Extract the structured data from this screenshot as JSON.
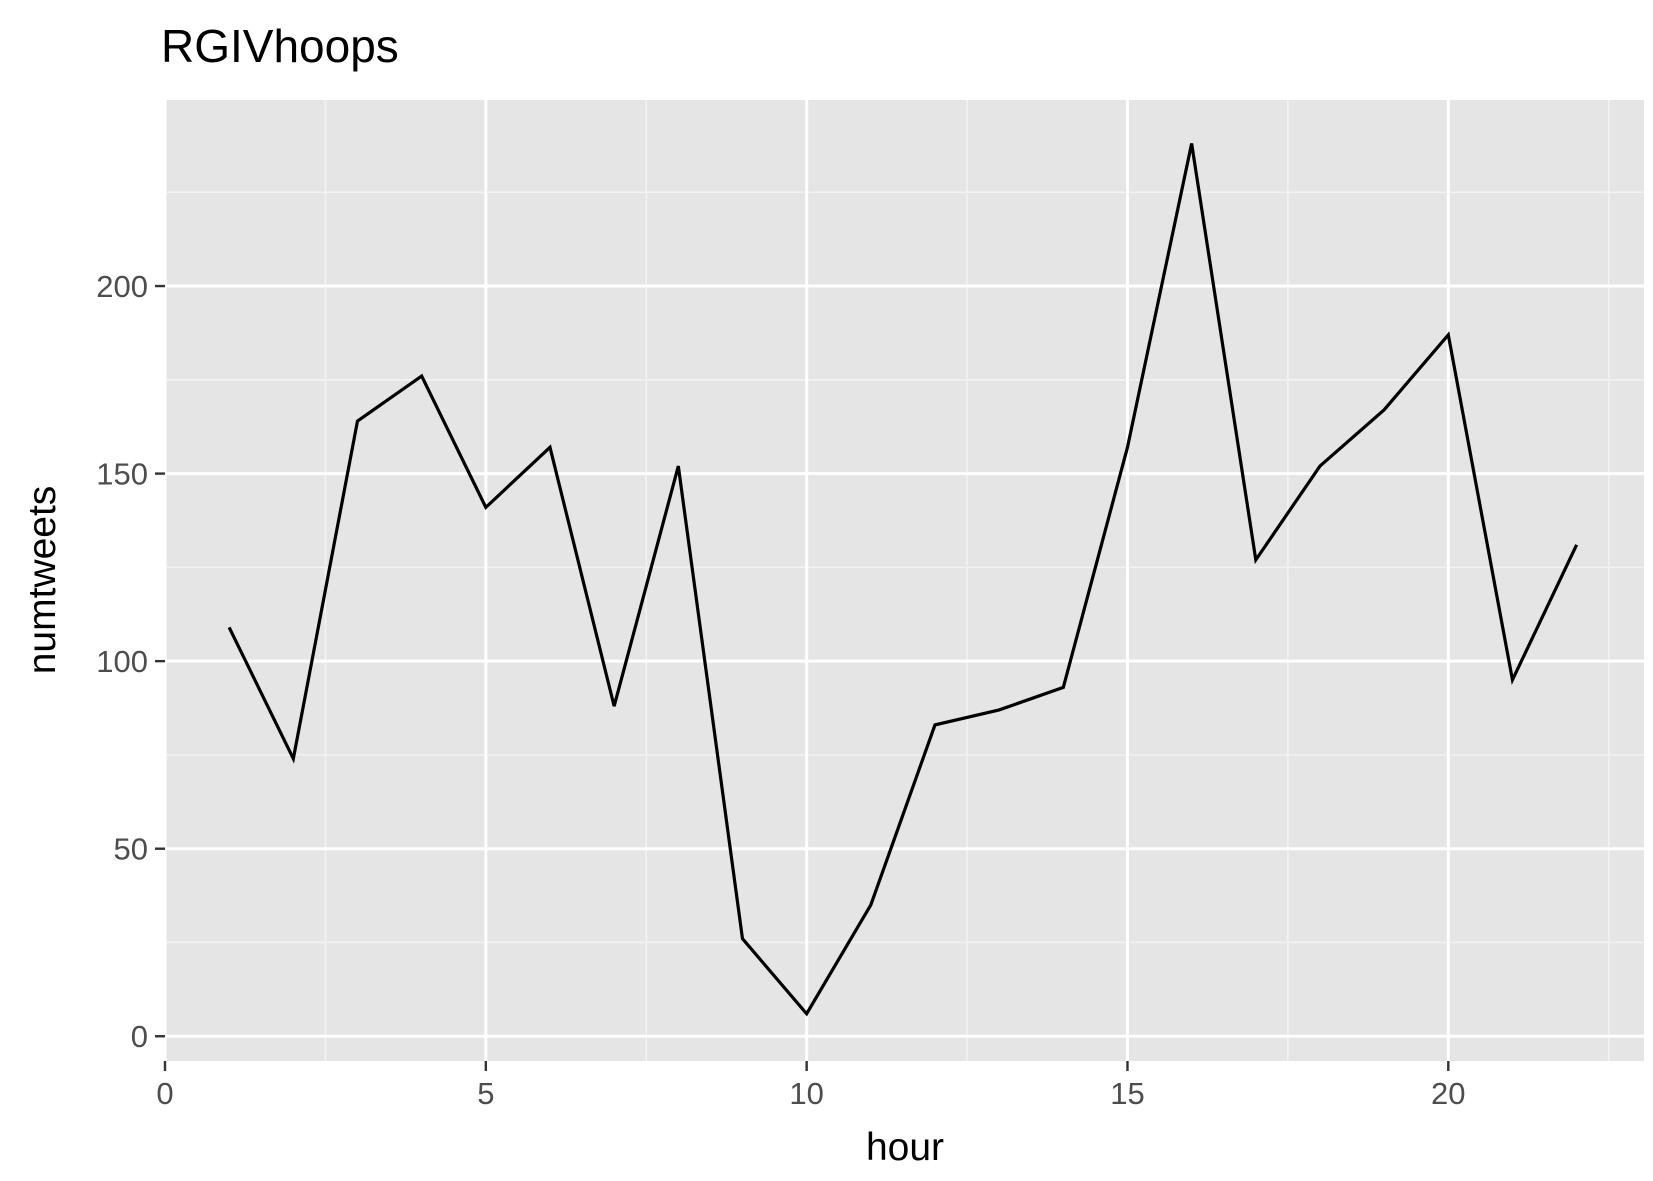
{
  "chart_data": {
    "type": "line",
    "title": "RGIVhoops",
    "xlabel": "hour",
    "ylabel": "numtweets",
    "xlim": [
      0,
      23.05
    ],
    "ylim": [
      -6.6,
      249.6
    ],
    "x_ticks": [
      0,
      5,
      10,
      15,
      20
    ],
    "x_tick_labels": [
      "0",
      "5",
      "10",
      "15",
      "20"
    ],
    "x_minor_ticks": [
      2.5,
      7.5,
      12.5,
      17.5,
      22.5
    ],
    "y_ticks": [
      0,
      50,
      100,
      150,
      200
    ],
    "y_tick_labels": [
      "0",
      "50",
      "100",
      "150",
      "200"
    ],
    "y_minor_ticks": [
      25,
      75,
      125,
      175,
      225
    ],
    "grid": true,
    "legend": "none",
    "colors": {
      "panel_background": "#e5e5e5",
      "grid_major": "#ffffff",
      "grid_minor": "#f2f2f2",
      "line": "#000000",
      "tick_text": "#4d4d4d",
      "tick_mark": "#333333"
    },
    "series": [
      {
        "x": [
          1,
          2,
          3,
          4,
          5,
          6,
          7,
          8,
          9,
          10,
          11,
          12,
          13,
          14,
          15,
          16,
          17,
          18,
          19,
          20,
          21,
          22
        ],
        "y": [
          109,
          74,
          164,
          176,
          141,
          157,
          88,
          152,
          26,
          6,
          35,
          83,
          87,
          93,
          157,
          238,
          127,
          152,
          167,
          187,
          95,
          131
        ]
      }
    ]
  }
}
